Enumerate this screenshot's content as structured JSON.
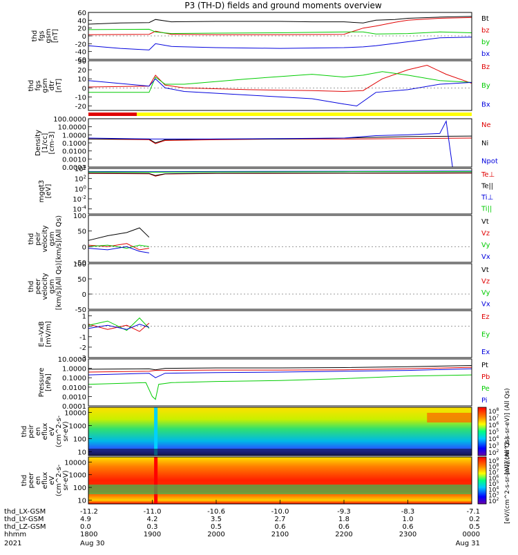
{
  "title": "P3 (TH-D) fields and ground moments overview",
  "date": "2021",
  "colors": {
    "black": "#000000",
    "red": "#e00000",
    "green": "#00cc00",
    "blue": "#0000dd",
    "yellow": "#ffff00"
  },
  "colorbar_labels": {
    "ion": "[eV/(cm^2-s-sr-eV)] (All Qs)",
    "electron": "[eV/(cm^2-s-sr-eV)] (All Qs)"
  },
  "ephemeris": {
    "row_labels": [
      "thd_LX-GSM",
      "thd_LY-GSM",
      "thd_LZ-GSM",
      "hhmm"
    ],
    "columns": [
      {
        "lx": "-11.2",
        "ly": "4.9",
        "lz": "0.0",
        "hhmm": "1800",
        "date": "Aug 30"
      },
      {
        "lx": "-11.0",
        "ly": "4.2",
        "lz": "0.3",
        "hhmm": "1900",
        "date": ""
      },
      {
        "lx": "-10.6",
        "ly": "3.5",
        "lz": "0.5",
        "hhmm": "2000",
        "date": ""
      },
      {
        "lx": "-10.0",
        "ly": "2.7",
        "lz": "0.6",
        "hhmm": "2100",
        "date": ""
      },
      {
        "lx": "-9.3",
        "ly": "1.8",
        "lz": "0.6",
        "hhmm": "2200",
        "date": ""
      },
      {
        "lx": "-8.3",
        "ly": "1.0",
        "lz": "0.6",
        "hhmm": "2300",
        "date": ""
      },
      {
        "lx": "-7.1",
        "ly": "0.2",
        "lz": "0.5",
        "hhmm": "0000",
        "date": "Aug 31"
      }
    ]
  },
  "chart_data": [
    {
      "type": "line",
      "id": "fgs_gsm",
      "ylabel": [
        "thd",
        "fgs",
        "gsm",
        "[nT]"
      ],
      "ylim": [
        -60,
        60
      ],
      "log": false,
      "ticks": [
        "60",
        "40",
        "20",
        "0",
        "-20",
        "-40",
        "-60"
      ],
      "legend": [
        {
          "name": "Bt",
          "color": "black"
        },
        {
          "name": "bz",
          "color": "red"
        },
        {
          "name": "by",
          "color": "green"
        },
        {
          "name": "bx",
          "color": "blue"
        }
      ],
      "series": [
        {
          "name": "Bt",
          "color": "black",
          "x": [
            18.0,
            18.5,
            18.95,
            19.05,
            19.3,
            20.0,
            21.0,
            21.5,
            22.0,
            22.3,
            22.5,
            22.8,
            23.0,
            23.5,
            24.0
          ],
          "y": [
            30,
            33,
            34,
            42,
            36,
            37,
            37,
            36,
            36,
            33,
            40,
            42,
            45,
            48,
            50
          ]
        },
        {
          "name": "bz",
          "color": "red",
          "x": [
            18.0,
            18.95,
            19.05,
            19.3,
            20.0,
            21.0,
            22.0,
            22.3,
            22.5,
            22.8,
            23.0,
            23.5,
            24.0
          ],
          "y": [
            3,
            4,
            12,
            4,
            3,
            3,
            4,
            20,
            25,
            35,
            40,
            45,
            47
          ]
        },
        {
          "name": "by",
          "color": "green",
          "x": [
            18.0,
            18.95,
            19.05,
            19.3,
            20.0,
            21.0,
            22.0,
            22.3,
            22.5,
            23.0,
            23.5,
            24.0
          ],
          "y": [
            16,
            17,
            10,
            6,
            7,
            8,
            10,
            10,
            5,
            6,
            10,
            8
          ]
        },
        {
          "name": "bx",
          "color": "blue",
          "x": [
            18.0,
            18.5,
            18.95,
            19.05,
            19.3,
            20.0,
            21.0,
            22.0,
            22.3,
            22.5,
            23.0,
            23.5,
            24.0
          ],
          "y": [
            -25,
            -32,
            -36,
            -20,
            -27,
            -30,
            -32,
            -30,
            -28,
            -25,
            -15,
            -5,
            -3
          ]
        }
      ]
    },
    {
      "type": "line",
      "id": "fgs_gsm_detrended",
      "ylabel": [
        "thd",
        "fgs",
        "gsm",
        "dtr",
        "[nT]"
      ],
      "ylim": [
        -25,
        30
      ],
      "log": false,
      "ticks": [
        "30",
        "20",
        "10",
        "0",
        "-10",
        "-20"
      ],
      "legend": [
        {
          "name": "Bz",
          "color": "red"
        },
        {
          "name": "By",
          "color": "green"
        },
        {
          "name": "Bx",
          "color": "blue"
        }
      ],
      "series": [
        {
          "name": "Bz",
          "color": "red",
          "x": [
            18.0,
            18.95,
            19.05,
            19.2,
            19.5,
            20.5,
            21.5,
            22.0,
            22.3,
            22.6,
            23.0,
            23.3,
            23.6,
            24.0
          ],
          "y": [
            1,
            2,
            14,
            3,
            0,
            -2,
            -3,
            -4,
            -3,
            10,
            20,
            25,
            15,
            5
          ]
        },
        {
          "name": "By",
          "color": "green",
          "x": [
            18.0,
            18.95,
            19.05,
            19.2,
            19.5,
            20.5,
            21.5,
            22.0,
            22.3,
            22.6,
            23.0,
            23.5,
            24.0
          ],
          "y": [
            -5,
            -5,
            12,
            4,
            4,
            10,
            15,
            12,
            14,
            18,
            14,
            8,
            6
          ]
        },
        {
          "name": "Bx",
          "color": "blue",
          "x": [
            18.0,
            18.95,
            19.05,
            19.2,
            19.5,
            20.5,
            21.5,
            22.0,
            22.2,
            22.5,
            23.0,
            23.5,
            24.0
          ],
          "y": [
            8,
            2,
            10,
            0,
            -4,
            -8,
            -12,
            -18,
            -20,
            -5,
            -2,
            4,
            6
          ]
        }
      ]
    },
    {
      "type": "line",
      "id": "density",
      "ylabel": [
        "Density",
        "[1/cc]",
        "[cm-3]"
      ],
      "ylim": [
        0.0001,
        100
      ],
      "log": true,
      "ticks": [
        "100.0000",
        "10.0000",
        "1.0000",
        "0.1000",
        "0.0100",
        "0.0010",
        "0.0001"
      ],
      "legend": [
        {
          "name": "Ne",
          "color": "red"
        },
        {
          "name": "Ni",
          "color": "black"
        },
        {
          "name": "Npot",
          "color": "blue"
        }
      ],
      "series": [
        {
          "name": "Ne",
          "color": "red",
          "x": [
            18.0,
            18.95,
            19.05,
            19.2,
            20.0,
            21.0,
            22.0,
            23.0,
            24.0
          ],
          "y": [
            0.3,
            0.25,
            0.08,
            0.2,
            0.25,
            0.3,
            0.3,
            0.35,
            0.4
          ]
        },
        {
          "name": "Ni",
          "color": "black",
          "x": [
            18.0,
            18.95,
            19.05,
            19.2,
            20.0,
            21.0,
            22.0,
            23.0,
            24.0
          ],
          "y": [
            0.3,
            0.3,
            0.1,
            0.25,
            0.3,
            0.3,
            0.4,
            0.6,
            0.7
          ]
        },
        {
          "name": "Npot",
          "color": "blue",
          "x": [
            18.0,
            19.0,
            20.0,
            21.0,
            22.0,
            22.5,
            23.0,
            23.5,
            23.6,
            23.7,
            24.0
          ],
          "y": [
            0.4,
            0.3,
            0.3,
            0.35,
            0.4,
            0.8,
            1.0,
            1.5,
            50,
            0.0001,
            0.0001
          ]
        }
      ]
    },
    {
      "type": "line",
      "id": "temperature",
      "ylabel": [
        "mgqt3",
        "[eV]"
      ],
      "ylim": [
        1e-05,
        10000
      ],
      "log": true,
      "ticks": [
        "10^4",
        "10^2",
        "10^0",
        "10^-2",
        "10^-4"
      ],
      "legend": [
        {
          "name": "Te⊥",
          "color": "red"
        },
        {
          "name": "Te||",
          "color": "black"
        },
        {
          "name": "Ti⊥",
          "color": "blue"
        },
        {
          "name": "Ti||",
          "color": "green"
        }
      ],
      "series": [
        {
          "name": "Te⊥",
          "color": "red",
          "x": [
            18.0,
            18.95,
            19.05,
            19.2,
            20.0,
            22.0,
            24.0
          ],
          "y": [
            1000,
            900,
            300,
            800,
            1000,
            1100,
            1200
          ]
        },
        {
          "name": "Te||",
          "color": "black",
          "x": [
            18.0,
            18.95,
            19.05,
            19.2,
            20.0,
            22.0,
            24.0
          ],
          "y": [
            1200,
            1000,
            400,
            900,
            1100,
            1200,
            1400
          ]
        },
        {
          "name": "Ti⊥",
          "color": "blue",
          "x": [
            18.0,
            19.0,
            20.0,
            22.0,
            24.0
          ],
          "y": [
            2500,
            2200,
            2500,
            2800,
            3000
          ]
        },
        {
          "name": "Ti||",
          "color": "green",
          "x": [
            18.0,
            19.0,
            20.0,
            22.0,
            24.0
          ],
          "y": [
            2000,
            1800,
            2000,
            2300,
            2500
          ]
        }
      ]
    },
    {
      "type": "line",
      "id": "peir_velocity",
      "ylabel": [
        "thd",
        "peir",
        "velocity",
        "gsm",
        "[km/s](All Qs)"
      ],
      "ylim": [
        -50,
        100
      ],
      "log": false,
      "ticks": [
        "100",
        "50",
        "0",
        "-50"
      ],
      "legend": [
        {
          "name": "Vt",
          "color": "black"
        },
        {
          "name": "Vz",
          "color": "red"
        },
        {
          "name": "Vy",
          "color": "green"
        },
        {
          "name": "Vx",
          "color": "blue"
        }
      ],
      "series": [
        {
          "name": "Vt",
          "color": "black",
          "x": [
            18.0,
            18.3,
            18.6,
            18.8,
            18.95
          ],
          "y": [
            20,
            35,
            45,
            60,
            30
          ]
        },
        {
          "name": "Vz",
          "color": "red",
          "x": [
            18.0,
            18.3,
            18.6,
            18.8,
            18.95
          ],
          "y": [
            5,
            0,
            10,
            -10,
            -5
          ]
        },
        {
          "name": "Vy",
          "color": "green",
          "x": [
            18.0,
            18.3,
            18.6,
            18.8,
            18.95
          ],
          "y": [
            0,
            5,
            -5,
            5,
            0
          ]
        },
        {
          "name": "Vx",
          "color": "blue",
          "x": [
            18.0,
            18.3,
            18.6,
            18.8,
            18.95
          ],
          "y": [
            -5,
            -10,
            0,
            -15,
            -20
          ]
        }
      ]
    },
    {
      "type": "line",
      "id": "peer_velocity",
      "ylabel": [
        "thd",
        "peer",
        "velocity",
        "gsm",
        "[km/s](All Qs)"
      ],
      "ylim": [
        -50,
        100
      ],
      "log": false,
      "ticks": [
        "100",
        "50",
        "0",
        "-50"
      ],
      "legend": [
        {
          "name": "Vt",
          "color": "black"
        },
        {
          "name": "Vz",
          "color": "red"
        },
        {
          "name": "Vy",
          "color": "green"
        },
        {
          "name": "Vx",
          "color": "blue"
        }
      ],
      "series": []
    },
    {
      "type": "line",
      "id": "efield",
      "ylabel": [
        "E=-VxB",
        "[mV/m]"
      ],
      "ylim": [
        -3,
        1.5
      ],
      "log": false,
      "ticks": [
        "1",
        "0",
        "-1",
        "-2",
        "-3"
      ],
      "legend": [
        {
          "name": "Ez",
          "color": "red"
        },
        {
          "name": "Ey",
          "color": "green"
        },
        {
          "name": "Ex",
          "color": "blue"
        }
      ],
      "series": [
        {
          "name": "Ez",
          "color": "red",
          "x": [
            18.0,
            18.3,
            18.6,
            18.8,
            18.95
          ],
          "y": [
            0.2,
            -0.3,
            0.1,
            -0.5,
            0.3
          ]
        },
        {
          "name": "Ey",
          "color": "green",
          "x": [
            18.0,
            18.3,
            18.6,
            18.8,
            18.95
          ],
          "y": [
            0.1,
            0.5,
            -0.4,
            0.8,
            -0.2
          ]
        },
        {
          "name": "Ex",
          "color": "blue",
          "x": [
            18.0,
            18.3,
            18.6,
            18.8,
            18.95
          ],
          "y": [
            -0.2,
            0.1,
            -0.3,
            0.2,
            -0.1
          ]
        }
      ]
    },
    {
      "type": "line",
      "id": "pressure",
      "ylabel": [
        "Pressure",
        "[nPa]"
      ],
      "ylim": [
        0.0001,
        10
      ],
      "log": true,
      "ticks": [
        "10.0000",
        "1.0000",
        "0.1000",
        "0.0100",
        "0.0010",
        "0.0001"
      ],
      "legend": [
        {
          "name": "Pt",
          "color": "black"
        },
        {
          "name": "Pb",
          "color": "red"
        },
        {
          "name": "Pe",
          "color": "green"
        },
        {
          "name": "Pi",
          "color": "blue"
        }
      ],
      "series": [
        {
          "name": "Pt",
          "color": "black",
          "x": [
            18.0,
            18.95,
            19.05,
            19.2,
            20.0,
            21.0,
            22.0,
            23.0,
            24.0
          ],
          "y": [
            0.8,
            0.9,
            0.7,
            1.0,
            1.1,
            1.1,
            1.2,
            1.5,
            2.0
          ]
        },
        {
          "name": "Pb",
          "color": "red",
          "x": [
            18.0,
            18.95,
            19.05,
            19.2,
            20.0,
            21.0,
            22.0,
            23.0,
            24.0
          ],
          "y": [
            0.4,
            0.5,
            0.6,
            0.6,
            0.65,
            0.65,
            0.7,
            0.9,
            1.3
          ]
        },
        {
          "name": "Pe",
          "color": "green",
          "x": [
            18.0,
            18.9,
            19.0,
            19.05,
            19.1,
            19.3,
            20.0,
            21.0,
            22.0,
            23.0,
            24.0
          ],
          "y": [
            0.02,
            0.03,
            0.001,
            0.0005,
            0.02,
            0.03,
            0.04,
            0.05,
            0.08,
            0.15,
            0.2
          ]
        },
        {
          "name": "Pi",
          "color": "blue",
          "x": [
            18.0,
            18.95,
            19.05,
            19.2,
            20.0,
            21.0,
            22.0,
            23.0,
            24.0
          ],
          "y": [
            0.2,
            0.3,
            0.1,
            0.3,
            0.35,
            0.4,
            0.5,
            0.6,
            0.9
          ]
        }
      ]
    },
    {
      "type": "heatmap",
      "id": "peir_eflux",
      "ylabel": [
        "thd",
        "peir",
        "en",
        "eflux",
        "eV",
        "(cm^2-s-",
        "sr-eV)"
      ],
      "ylim": [
        5,
        25000
      ],
      "log": true,
      "ticks": [
        "10000",
        "1000",
        "100",
        "10"
      ],
      "colorbar_ticks": [
        "10^8",
        "10^7",
        "10^6",
        "10^5",
        "10^4",
        "10^3",
        "10^2"
      ]
    },
    {
      "type": "heatmap",
      "id": "peer_eflux",
      "ylabel": [
        "thd",
        "peer",
        "en",
        "eflux",
        "eV",
        "(cm^2-s-",
        "sr-eV)"
      ],
      "ylim": [
        5,
        25000
      ],
      "log": true,
      "ticks": [
        "10000",
        "1000",
        "100",
        "10"
      ],
      "colorbar_ticks": [
        "10^9",
        "10^8",
        "10^7",
        "10^6",
        "10^5",
        "10^4",
        "10^3",
        "10^2"
      ]
    }
  ]
}
